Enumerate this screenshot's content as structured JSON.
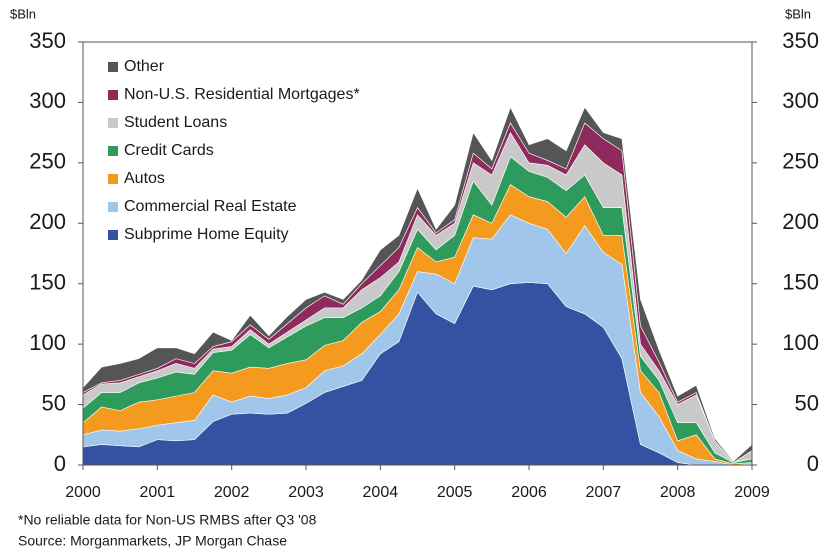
{
  "chart_data": {
    "type": "stacked_area",
    "y_label": "$Bln",
    "y2_label": "$Bln",
    "footnote": "*No reliable data for Non-US RMBS after Q3 '08",
    "source": "Source: Morganmarkets, JP Morgan Chase",
    "x": [
      2000,
      2000.25,
      2000.5,
      2000.75,
      2001,
      2001.25,
      2001.5,
      2001.75,
      2002,
      2002.25,
      2002.5,
      2002.75,
      2003,
      2003.25,
      2003.5,
      2003.75,
      2004,
      2004.25,
      2004.5,
      2004.75,
      2005,
      2005.25,
      2005.5,
      2005.75,
      2006,
      2006.25,
      2006.5,
      2006.75,
      2007,
      2007.25,
      2007.5,
      2007.75,
      2008,
      2008.25,
      2008.5,
      2008.75,
      2009
    ],
    "xlim": [
      2000,
      2009
    ],
    "xticks": [
      2000,
      2001,
      2002,
      2003,
      2004,
      2005,
      2006,
      2007,
      2008,
      2009
    ],
    "ylim": [
      0,
      350
    ],
    "yticks": [
      0,
      50,
      100,
      150,
      200,
      250,
      300,
      350
    ],
    "y2lim": [
      0,
      350
    ],
    "y2ticks": [
      0,
      50,
      100,
      150,
      200,
      250,
      300,
      350
    ],
    "legend": "upper-left",
    "series": [
      {
        "name": "Subprime Home Equity",
        "color": "#3551a1",
        "values": [
          15,
          17,
          16,
          15,
          21,
          20,
          21,
          36,
          42,
          43,
          42,
          43,
          51,
          60,
          65,
          70,
          92,
          102,
          143,
          125,
          117,
          148,
          145,
          150,
          151,
          150,
          131,
          125,
          114,
          88,
          17,
          10,
          2,
          0,
          0,
          0,
          0
        ]
      },
      {
        "name": "Commercial Real Estate",
        "color": "#a0c6ea",
        "values": [
          10,
          12,
          12,
          15,
          12,
          15,
          16,
          22,
          10,
          14,
          13,
          15,
          13,
          18,
          17,
          22,
          16,
          23,
          17,
          33,
          33,
          40,
          42,
          57,
          49,
          45,
          44,
          73,
          62,
          78,
          43,
          30,
          10,
          5,
          3,
          0,
          1
        ]
      },
      {
        "name": "Autos",
        "color": "#f49b1f",
        "values": [
          10,
          19,
          17,
          22,
          21,
          22,
          23,
          20,
          24,
          24,
          25,
          26,
          23,
          21,
          21,
          26,
          19,
          20,
          20,
          10,
          22,
          19,
          13,
          25,
          22,
          23,
          30,
          24,
          14,
          24,
          18,
          20,
          8,
          20,
          2,
          1,
          1
        ]
      },
      {
        "name": "Credit Cards",
        "color": "#2e9a5b",
        "values": [
          12,
          12,
          15,
          16,
          18,
          20,
          15,
          15,
          19,
          27,
          17,
          22,
          28,
          23,
          19,
          12,
          13,
          15,
          15,
          10,
          18,
          28,
          15,
          23,
          21,
          20,
          22,
          18,
          23,
          23,
          12,
          10,
          15,
          10,
          5,
          1,
          3
        ]
      },
      {
        "name": "Student Loans",
        "color": "#c9c9c9",
        "values": [
          11,
          7,
          8,
          5,
          6,
          7,
          5,
          3,
          3,
          4,
          3,
          4,
          5,
          8,
          8,
          15,
          15,
          8,
          12,
          12,
          10,
          15,
          25,
          20,
          7,
          10,
          13,
          25,
          37,
          27,
          10,
          8,
          15,
          23,
          10,
          0,
          7
        ]
      },
      {
        "name": "Non-U.S. Residential Mortgages*",
        "color": "#8e2a5d",
        "values": [
          2,
          1,
          2,
          2,
          2,
          4,
          4,
          2,
          4,
          4,
          4,
          7,
          10,
          10,
          3,
          5,
          10,
          12,
          6,
          2,
          3,
          8,
          5,
          8,
          8,
          4,
          5,
          18,
          20,
          20,
          15,
          7,
          2,
          2,
          0,
          0,
          0
        ]
      },
      {
        "name": "Other",
        "color": "#555555",
        "values": [
          4,
          13,
          14,
          13,
          17,
          9,
          8,
          12,
          1,
          8,
          3,
          6,
          7,
          3,
          4,
          3,
          13,
          10,
          16,
          3,
          12,
          17,
          7,
          13,
          7,
          18,
          15,
          13,
          5,
          10,
          22,
          10,
          5,
          6,
          2,
          1,
          5
        ]
      }
    ]
  }
}
